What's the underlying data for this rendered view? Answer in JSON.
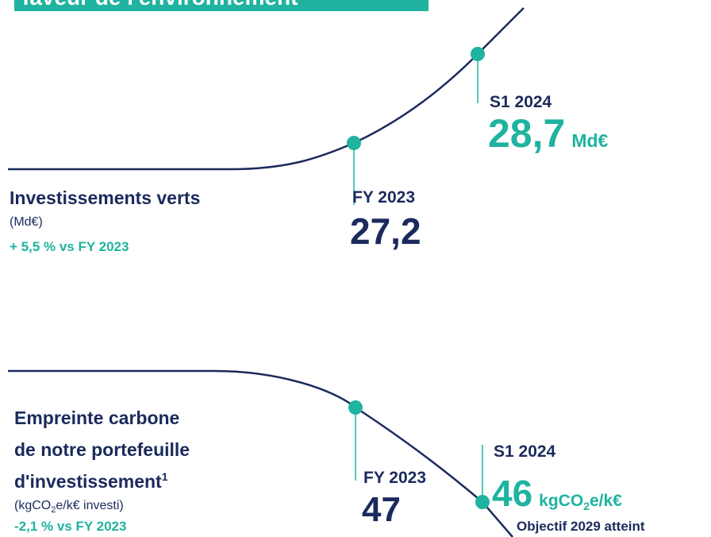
{
  "header": {
    "title": "faveur de l'environnement"
  },
  "sections": [
    {
      "title": [
        "Investissements verts"
      ],
      "unit": "(Md€)",
      "change": "+ 5,5 % vs FY 2023",
      "points": [
        {
          "label": "FY 2023",
          "value": "27,2"
        },
        {
          "label": "S1 2024",
          "value": "28,7",
          "unit": [
            "Md€"
          ]
        }
      ]
    },
    {
      "title": [
        "Empreinte carbone",
        "de notre portefeuille",
        "d'investissement"
      ],
      "footnote": "1",
      "unit": [
        "(kgCO",
        "2",
        "e/k€ investi)"
      ],
      "change": "-2,1 % vs FY 2023",
      "points": [
        {
          "label": "FY 2023",
          "value": "47"
        },
        {
          "label": "S1 2024",
          "value": "46",
          "unit": [
            "kgCO",
            "2",
            "e/k€"
          ]
        }
      ],
      "note": "Objectif 2029 atteint"
    }
  ]
}
